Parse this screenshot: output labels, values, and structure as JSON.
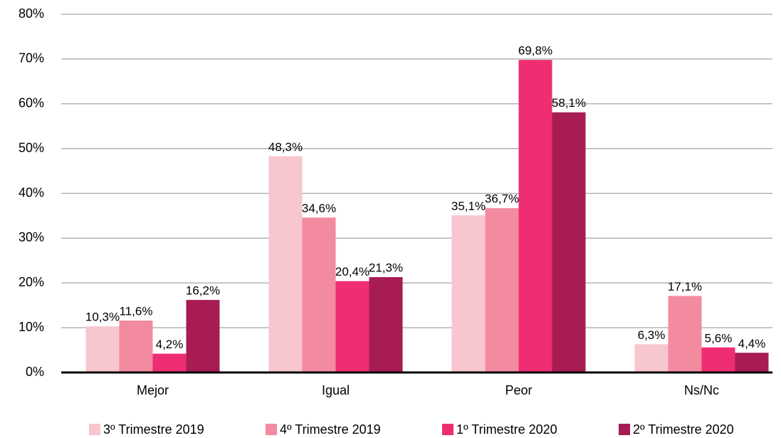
{
  "chart_data": {
    "type": "bar",
    "categories": [
      "Mejor",
      "Igual",
      "Peor",
      "Ns/Nc"
    ],
    "series": [
      {
        "name": "3º Trimestre 2019",
        "color": "#f7c6cf",
        "values": [
          10.3,
          48.3,
          35.1,
          6.3
        ],
        "value_labels": [
          "10,3%",
          "48,3%",
          "35,1%",
          "6,3%"
        ]
      },
      {
        "name": "4º Trimestre 2019",
        "color": "#f28ba0",
        "values": [
          11.6,
          34.6,
          36.7,
          17.1
        ],
        "value_labels": [
          "11,6%",
          "34,6%",
          "36,7%",
          "17,1%"
        ]
      },
      {
        "name": "1º Trimestre 2020",
        "color": "#ee2d73",
        "values": [
          4.2,
          20.4,
          69.8,
          5.6
        ],
        "value_labels": [
          "4,2%",
          "20,4%",
          "69,8%",
          "5,6%"
        ]
      },
      {
        "name": "2º Trimestre 2020",
        "color": "#a61c53",
        "values": [
          16.2,
          21.3,
          58.1,
          4.4
        ],
        "value_labels": [
          "16,2%",
          "21,3%",
          "58,1%",
          "4,4%"
        ]
      }
    ],
    "ylim": [
      0,
      80
    ],
    "yticks": [
      {
        "value": 0,
        "label": "0%"
      },
      {
        "value": 10,
        "label": "10%"
      },
      {
        "value": 20,
        "label": "20%"
      },
      {
        "value": 30,
        "label": "30%"
      },
      {
        "value": 40,
        "label": "40%"
      },
      {
        "value": 50,
        "label": "50%"
      },
      {
        "value": 60,
        "label": "60%"
      },
      {
        "value": 70,
        "label": "70%"
      },
      {
        "value": 80,
        "label": "80%"
      }
    ],
    "grid": true,
    "legend": "bottom"
  }
}
